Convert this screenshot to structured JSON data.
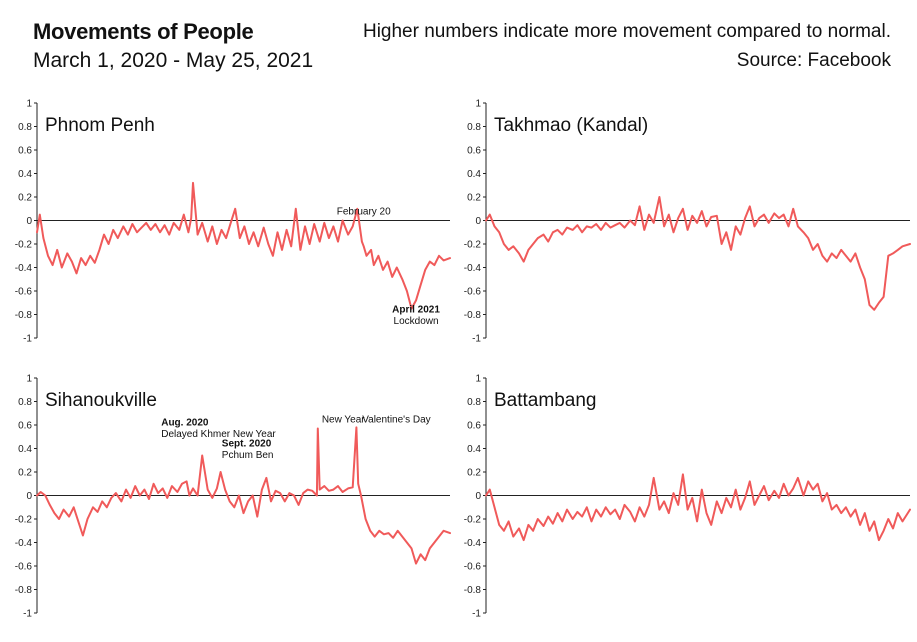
{
  "header": {
    "title": "Movements of People",
    "subtitle": "March 1, 2020 - May 25, 2021",
    "note": "Higher numbers indicate more movement compared to normal.",
    "source": "Source: Facebook"
  },
  "colors": {
    "line": "#f05a5a",
    "axis": "#222222",
    "zero": "#222222"
  },
  "chart_data": [
    {
      "type": "line",
      "title": "Phnom Penh",
      "x_range": [
        "2020-03-01",
        "2021-05-25"
      ],
      "ylim": [
        -1,
        1
      ],
      "yticks": [
        1,
        0.8,
        0.6,
        0.4,
        0.2,
        0,
        -0.2,
        -0.4,
        -0.6,
        -0.8,
        -1
      ],
      "series": [
        {
          "x": [
            "2020-03-01",
            "2020-03-04",
            "2020-03-08",
            "2020-03-13",
            "2020-03-18",
            "2020-03-23",
            "2020-03-28",
            "2020-04-03",
            "2020-04-08",
            "2020-04-13",
            "2020-04-18",
            "2020-04-23",
            "2020-04-28",
            "2020-05-03",
            "2020-05-08",
            "2020-05-13",
            "2020-05-18",
            "2020-05-23",
            "2020-05-28",
            "2020-06-03",
            "2020-06-08",
            "2020-06-13",
            "2020-06-18",
            "2020-06-23",
            "2020-06-28",
            "2020-07-03",
            "2020-07-08",
            "2020-07-13",
            "2020-07-18",
            "2020-07-23",
            "2020-07-28",
            "2020-08-03",
            "2020-08-08",
            "2020-08-13",
            "2020-08-16",
            "2020-08-18",
            "2020-08-23",
            "2020-08-28",
            "2020-09-03",
            "2020-09-08",
            "2020-09-13",
            "2020-09-18",
            "2020-09-23",
            "2020-09-28",
            "2020-10-03",
            "2020-10-08",
            "2020-10-13",
            "2020-10-18",
            "2020-10-23",
            "2020-10-28",
            "2020-11-03",
            "2020-11-08",
            "2020-11-13",
            "2020-11-18",
            "2020-11-23",
            "2020-11-28",
            "2020-12-03",
            "2020-12-08",
            "2020-12-13",
            "2020-12-18",
            "2020-12-23",
            "2020-12-28",
            "2021-01-03",
            "2021-01-08",
            "2021-01-13",
            "2021-01-18",
            "2021-01-23",
            "2021-01-28",
            "2021-02-03",
            "2021-02-08",
            "2021-02-13",
            "2021-02-18",
            "2021-02-20",
            "2021-02-23",
            "2021-02-28",
            "2021-03-03",
            "2021-03-08",
            "2021-03-13",
            "2021-03-18",
            "2021-03-23",
            "2021-03-28",
            "2021-04-03",
            "2021-04-08",
            "2021-04-13",
            "2021-04-18",
            "2021-04-23",
            "2021-04-28",
            "2021-05-03",
            "2021-05-08",
            "2021-05-13",
            "2021-05-18",
            "2021-05-25"
          ],
          "y": [
            -0.1,
            0.05,
            -0.15,
            -0.3,
            -0.38,
            -0.25,
            -0.4,
            -0.28,
            -0.35,
            -0.45,
            -0.32,
            -0.38,
            -0.3,
            -0.36,
            -0.25,
            -0.12,
            -0.2,
            -0.08,
            -0.15,
            -0.05,
            -0.12,
            -0.03,
            -0.1,
            -0.06,
            -0.02,
            -0.08,
            -0.03,
            -0.1,
            -0.04,
            -0.12,
            -0.02,
            -0.08,
            0.05,
            -0.1,
            0.02,
            0.32,
            -0.12,
            -0.02,
            -0.18,
            -0.05,
            -0.2,
            -0.08,
            -0.15,
            -0.02,
            0.1,
            -0.15,
            -0.05,
            -0.2,
            -0.1,
            -0.22,
            -0.06,
            -0.2,
            -0.3,
            -0.1,
            -0.25,
            -0.08,
            -0.22,
            0.1,
            -0.25,
            -0.05,
            -0.2,
            -0.03,
            -0.18,
            -0.02,
            -0.15,
            -0.05,
            -0.18,
            0.0,
            -0.12,
            -0.05,
            0.1,
            -0.18,
            -0.22,
            -0.3,
            -0.25,
            -0.38,
            -0.3,
            -0.42,
            -0.35,
            -0.48,
            -0.4,
            -0.5,
            -0.6,
            -0.75,
            -0.68,
            -0.55,
            -0.42,
            -0.35,
            -0.38,
            -0.3,
            -0.34,
            -0.32
          ]
        }
      ],
      "annotations": [
        {
          "date": "2021-02-20",
          "y": 0.05,
          "lines": [
            {
              "text": "February 20",
              "bold": false
            }
          ]
        },
        {
          "date": "2021-04-18",
          "y": -0.88,
          "lines": [
            {
              "text": "April 2021",
              "bold": true
            },
            {
              "text": "Lockdown",
              "bold": false
            }
          ]
        }
      ]
    },
    {
      "type": "line",
      "title": "Takhmao (Kandal)",
      "x_range": [
        "2020-03-01",
        "2021-05-25"
      ],
      "ylim": [
        -1,
        1
      ],
      "yticks": [
        1,
        0.8,
        0.6,
        0.4,
        0.2,
        0,
        -0.2,
        -0.4,
        -0.6,
        -0.8,
        -1
      ],
      "series": [
        {
          "x": [
            "2020-03-01",
            "2020-03-05",
            "2020-03-10",
            "2020-03-15",
            "2020-03-20",
            "2020-03-25",
            "2020-03-30",
            "2020-04-05",
            "2020-04-10",
            "2020-04-15",
            "2020-04-20",
            "2020-04-25",
            "2020-05-01",
            "2020-05-06",
            "2020-05-11",
            "2020-05-16",
            "2020-05-21",
            "2020-05-26",
            "2020-06-01",
            "2020-06-06",
            "2020-06-11",
            "2020-06-16",
            "2020-06-21",
            "2020-06-26",
            "2020-07-01",
            "2020-07-06",
            "2020-07-11",
            "2020-07-16",
            "2020-07-21",
            "2020-07-26",
            "2020-08-01",
            "2020-08-06",
            "2020-08-11",
            "2020-08-16",
            "2020-08-21",
            "2020-08-26",
            "2020-09-01",
            "2020-09-06",
            "2020-09-11",
            "2020-09-16",
            "2020-09-21",
            "2020-09-26",
            "2020-10-01",
            "2020-10-06",
            "2020-10-11",
            "2020-10-16",
            "2020-10-21",
            "2020-10-26",
            "2020-11-01",
            "2020-11-06",
            "2020-11-11",
            "2020-11-16",
            "2020-11-21",
            "2020-11-26",
            "2020-12-01",
            "2020-12-06",
            "2020-12-11",
            "2020-12-16",
            "2020-12-21",
            "2020-12-26",
            "2021-01-01",
            "2021-01-06",
            "2021-01-11",
            "2021-01-16",
            "2021-01-21",
            "2021-01-26",
            "2021-02-01",
            "2021-02-06",
            "2021-02-11",
            "2021-02-16",
            "2021-02-21",
            "2021-02-26",
            "2021-03-03",
            "2021-03-08",
            "2021-03-13",
            "2021-03-18",
            "2021-03-23",
            "2021-03-28",
            "2021-04-02",
            "2021-04-07",
            "2021-04-12",
            "2021-04-17",
            "2021-04-22",
            "2021-04-27",
            "2021-05-02",
            "2021-05-07",
            "2021-05-12",
            "2021-05-17",
            "2021-05-25"
          ],
          "y": [
            0.0,
            0.05,
            -0.05,
            -0.1,
            -0.2,
            -0.25,
            -0.22,
            -0.28,
            -0.35,
            -0.25,
            -0.2,
            -0.15,
            -0.12,
            -0.18,
            -0.1,
            -0.08,
            -0.12,
            -0.06,
            -0.08,
            -0.04,
            -0.1,
            -0.05,
            -0.06,
            -0.03,
            -0.08,
            -0.02,
            -0.06,
            -0.04,
            -0.02,
            -0.06,
            0.0,
            -0.04,
            0.12,
            -0.08,
            0.05,
            -0.02,
            0.2,
            -0.05,
            0.05,
            -0.1,
            0.02,
            0.1,
            -0.08,
            0.04,
            -0.02,
            0.08,
            -0.05,
            0.03,
            0.04,
            -0.2,
            -0.1,
            -0.25,
            -0.05,
            -0.12,
            0.02,
            0.12,
            -0.05,
            0.02,
            0.05,
            -0.02,
            0.06,
            0.02,
            0.05,
            -0.05,
            0.1,
            -0.05,
            -0.1,
            -0.15,
            -0.25,
            -0.2,
            -0.3,
            -0.35,
            -0.28,
            -0.32,
            -0.25,
            -0.3,
            -0.35,
            -0.28,
            -0.4,
            -0.5,
            -0.72,
            -0.76,
            -0.7,
            -0.65,
            -0.3,
            -0.28,
            -0.25,
            -0.22,
            -0.2
          ]
        }
      ],
      "annotations": []
    },
    {
      "type": "line",
      "title": "Sihanoukville",
      "x_range": [
        "2020-03-01",
        "2021-05-25"
      ],
      "ylim": [
        -1,
        1
      ],
      "yticks": [
        1,
        0.8,
        0.6,
        0.4,
        0.2,
        0,
        -0.2,
        -0.4,
        -0.6,
        -0.8,
        -1
      ],
      "series": [
        {
          "x": [
            "2020-03-01",
            "2020-03-05",
            "2020-03-10",
            "2020-03-15",
            "2020-03-20",
            "2020-03-25",
            "2020-03-30",
            "2020-04-05",
            "2020-04-10",
            "2020-04-15",
            "2020-04-20",
            "2020-04-25",
            "2020-05-01",
            "2020-05-06",
            "2020-05-11",
            "2020-05-16",
            "2020-05-21",
            "2020-05-26",
            "2020-06-01",
            "2020-06-06",
            "2020-06-11",
            "2020-06-16",
            "2020-06-21",
            "2020-06-26",
            "2020-07-01",
            "2020-07-06",
            "2020-07-11",
            "2020-07-16",
            "2020-07-21",
            "2020-07-26",
            "2020-08-01",
            "2020-08-06",
            "2020-08-11",
            "2020-08-14",
            "2020-08-18",
            "2020-08-23",
            "2020-08-28",
            "2020-09-03",
            "2020-09-08",
            "2020-09-13",
            "2020-09-17",
            "2020-09-22",
            "2020-09-27",
            "2020-10-02",
            "2020-10-07",
            "2020-10-12",
            "2020-10-17",
            "2020-10-22",
            "2020-10-27",
            "2020-11-01",
            "2020-11-06",
            "2020-11-11",
            "2020-11-16",
            "2020-11-21",
            "2020-11-26",
            "2020-12-01",
            "2020-12-06",
            "2020-12-11",
            "2020-12-16",
            "2020-12-21",
            "2020-12-26",
            "2020-12-31",
            "2021-01-01",
            "2021-01-03",
            "2021-01-08",
            "2021-01-13",
            "2021-01-18",
            "2021-01-23",
            "2021-01-28",
            "2021-02-03",
            "2021-02-08",
            "2021-02-12",
            "2021-02-14",
            "2021-02-17",
            "2021-02-22",
            "2021-02-27",
            "2021-03-04",
            "2021-03-09",
            "2021-03-14",
            "2021-03-19",
            "2021-03-24",
            "2021-03-29",
            "2021-04-03",
            "2021-04-08",
            "2021-04-13",
            "2021-04-18",
            "2021-04-23",
            "2021-04-28",
            "2021-05-03",
            "2021-05-08",
            "2021-05-13",
            "2021-05-18",
            "2021-05-25"
          ],
          "y": [
            0.0,
            0.03,
            0.0,
            -0.08,
            -0.15,
            -0.2,
            -0.12,
            -0.18,
            -0.1,
            -0.22,
            -0.34,
            -0.2,
            -0.1,
            -0.14,
            -0.05,
            -0.1,
            -0.02,
            0.02,
            -0.05,
            0.05,
            -0.02,
            0.08,
            0.0,
            0.05,
            -0.03,
            0.1,
            0.02,
            0.06,
            -0.02,
            0.08,
            0.03,
            0.1,
            0.12,
            0.0,
            0.06,
            0.0,
            0.34,
            0.05,
            -0.02,
            0.06,
            0.2,
            0.05,
            -0.05,
            -0.1,
            0.0,
            -0.15,
            -0.05,
            0.0,
            -0.18,
            0.05,
            0.15,
            -0.05,
            0.04,
            0.02,
            -0.05,
            0.02,
            0.0,
            -0.08,
            0.02,
            0.05,
            0.04,
            0.0,
            0.57,
            0.05,
            0.08,
            0.04,
            0.05,
            0.08,
            0.03,
            0.06,
            0.07,
            0.58,
            0.1,
            0.0,
            -0.2,
            -0.3,
            -0.35,
            -0.3,
            -0.33,
            -0.32,
            -0.36,
            -0.3,
            -0.35,
            -0.4,
            -0.45,
            -0.58,
            -0.5,
            -0.55,
            -0.45,
            -0.4,
            -0.35,
            -0.3,
            -0.32
          ]
        }
      ],
      "annotations": [
        {
          "date": "2020-07-10",
          "y": 0.5,
          "lines": [
            {
              "text": "Aug. 2020",
              "bold": true
            },
            {
              "text": "Delayed Khmer New Year",
              "bold": false
            }
          ]
        },
        {
          "date": "2020-09-14",
          "y": 0.32,
          "lines": [
            {
              "text": "Sept. 2020",
              "bold": true
            },
            {
              "text": "Pchum Ben",
              "bold": false
            }
          ]
        },
        {
          "date": "2021-01-01",
          "y": 0.62,
          "lines": [
            {
              "text": "New Year",
              "bold": false
            }
          ]
        },
        {
          "date": "2021-02-14",
          "y": 0.62,
          "lines": [
            {
              "text": "Valentine's Day",
              "bold": false
            }
          ]
        }
      ]
    },
    {
      "type": "line",
      "title": "Battambang",
      "x_range": [
        "2020-03-01",
        "2021-05-25"
      ],
      "ylim": [
        -1,
        1
      ],
      "yticks": [
        1,
        0.8,
        0.6,
        0.4,
        0.2,
        0,
        -0.2,
        -0.4,
        -0.6,
        -0.8,
        -1
      ],
      "series": [
        {
          "x": [
            "2020-03-01",
            "2020-03-05",
            "2020-03-10",
            "2020-03-15",
            "2020-03-20",
            "2020-03-25",
            "2020-03-30",
            "2020-04-05",
            "2020-04-10",
            "2020-04-15",
            "2020-04-20",
            "2020-04-25",
            "2020-05-01",
            "2020-05-06",
            "2020-05-11",
            "2020-05-16",
            "2020-05-21",
            "2020-05-26",
            "2020-06-01",
            "2020-06-06",
            "2020-06-11",
            "2020-06-16",
            "2020-06-21",
            "2020-06-26",
            "2020-07-01",
            "2020-07-06",
            "2020-07-11",
            "2020-07-16",
            "2020-07-21",
            "2020-07-26",
            "2020-08-01",
            "2020-08-06",
            "2020-08-11",
            "2020-08-16",
            "2020-08-21",
            "2020-08-26",
            "2020-09-01",
            "2020-09-06",
            "2020-09-11",
            "2020-09-16",
            "2020-09-21",
            "2020-09-26",
            "2020-10-01",
            "2020-10-06",
            "2020-10-11",
            "2020-10-16",
            "2020-10-21",
            "2020-10-26",
            "2020-11-01",
            "2020-11-06",
            "2020-11-11",
            "2020-11-16",
            "2020-11-21",
            "2020-11-26",
            "2020-12-01",
            "2020-12-06",
            "2020-12-11",
            "2020-12-16",
            "2020-12-21",
            "2020-12-26",
            "2021-01-01",
            "2021-01-06",
            "2021-01-11",
            "2021-01-16",
            "2021-01-21",
            "2021-01-26",
            "2021-02-01",
            "2021-02-06",
            "2021-02-11",
            "2021-02-16",
            "2021-02-21",
            "2021-02-26",
            "2021-03-03",
            "2021-03-08",
            "2021-03-13",
            "2021-03-18",
            "2021-03-23",
            "2021-03-28",
            "2021-04-02",
            "2021-04-07",
            "2021-04-12",
            "2021-04-17",
            "2021-04-22",
            "2021-04-27",
            "2021-05-02",
            "2021-05-07",
            "2021-05-12",
            "2021-05-17",
            "2021-05-25"
          ],
          "y": [
            0.0,
            0.05,
            -0.1,
            -0.25,
            -0.3,
            -0.22,
            -0.35,
            -0.28,
            -0.38,
            -0.25,
            -0.3,
            -0.2,
            -0.26,
            -0.18,
            -0.24,
            -0.15,
            -0.22,
            -0.12,
            -0.2,
            -0.14,
            -0.18,
            -0.1,
            -0.22,
            -0.12,
            -0.18,
            -0.1,
            -0.16,
            -0.12,
            -0.2,
            -0.08,
            -0.14,
            -0.22,
            -0.1,
            -0.18,
            -0.08,
            0.15,
            -0.12,
            -0.05,
            -0.15,
            0.02,
            -0.08,
            0.18,
            -0.12,
            -0.02,
            -0.22,
            0.05,
            -0.15,
            -0.25,
            -0.05,
            -0.15,
            -0.02,
            -0.1,
            0.05,
            -0.12,
            -0.02,
            0.12,
            -0.08,
            0.0,
            0.08,
            -0.04,
            0.04,
            -0.02,
            0.1,
            0.0,
            0.06,
            0.15,
            0.0,
            0.12,
            0.05,
            0.1,
            -0.05,
            0.02,
            -0.12,
            -0.08,
            -0.15,
            -0.1,
            -0.18,
            -0.12,
            -0.25,
            -0.15,
            -0.3,
            -0.22,
            -0.38,
            -0.3,
            -0.2,
            -0.28,
            -0.15,
            -0.22,
            -0.12
          ]
        }
      ],
      "annotations": []
    }
  ]
}
